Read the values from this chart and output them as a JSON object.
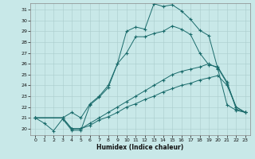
{
  "xlabel": "Humidex (Indice chaleur)",
  "bg_color": "#c8e8e8",
  "grid_color": "#aacccc",
  "line_color": "#1a6b6b",
  "xlim": [
    -0.5,
    23.5
  ],
  "ylim": [
    19.4,
    31.6
  ],
  "xticks": [
    0,
    1,
    2,
    3,
    4,
    5,
    6,
    7,
    8,
    9,
    10,
    11,
    12,
    13,
    14,
    15,
    16,
    17,
    18,
    19,
    20,
    21,
    22,
    23
  ],
  "yticks": [
    20,
    21,
    22,
    23,
    24,
    25,
    26,
    27,
    28,
    29,
    30,
    31
  ],
  "lines": [
    {
      "x": [
        0,
        1,
        2,
        3,
        4,
        5,
        6,
        7,
        8,
        9,
        10,
        11,
        12,
        13,
        14,
        15,
        16,
        17,
        18,
        19,
        20,
        21,
        22,
        23
      ],
      "y": [
        21.0,
        20.5,
        19.8,
        20.9,
        19.85,
        19.85,
        22.2,
        22.9,
        23.8,
        26.0,
        29.0,
        29.4,
        29.2,
        31.55,
        31.3,
        31.45,
        30.9,
        30.1,
        29.1,
        28.6,
        25.5,
        22.2,
        21.7,
        21.5
      ]
    },
    {
      "x": [
        0,
        3,
        4,
        5,
        6,
        7,
        8,
        9,
        10,
        11,
        12,
        13,
        14,
        15,
        16,
        17,
        18,
        19,
        20,
        21,
        22,
        23
      ],
      "y": [
        21.0,
        21.0,
        21.5,
        21.0,
        22.3,
        23.0,
        24.0,
        26.0,
        27.0,
        28.5,
        28.5,
        28.8,
        29.0,
        29.5,
        29.2,
        28.7,
        27.0,
        25.9,
        25.7,
        24.3,
        21.8,
        21.5
      ]
    },
    {
      "x": [
        0,
        3,
        4,
        5,
        6,
        7,
        8,
        9,
        10,
        11,
        12,
        13,
        14,
        15,
        16,
        17,
        18,
        19,
        20,
        21,
        22,
        23
      ],
      "y": [
        21.0,
        21.0,
        20.0,
        20.0,
        20.5,
        21.0,
        21.5,
        22.0,
        22.5,
        23.0,
        23.5,
        24.0,
        24.5,
        25.0,
        25.3,
        25.5,
        25.7,
        26.0,
        25.6,
        24.2,
        22.0,
        21.5
      ]
    },
    {
      "x": [
        0,
        3,
        4,
        5,
        6,
        7,
        8,
        9,
        10,
        11,
        12,
        13,
        14,
        15,
        16,
        17,
        18,
        19,
        20,
        21,
        22,
        23
      ],
      "y": [
        21.0,
        21.0,
        20.0,
        20.0,
        20.3,
        20.8,
        21.1,
        21.5,
        22.0,
        22.3,
        22.7,
        23.0,
        23.4,
        23.7,
        24.0,
        24.2,
        24.5,
        24.7,
        24.9,
        24.0,
        22.0,
        21.5
      ]
    }
  ]
}
